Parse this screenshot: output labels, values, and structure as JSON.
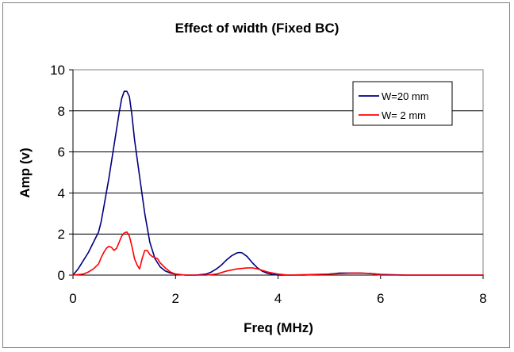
{
  "chart_data": {
    "type": "line",
    "title": "Effect of width (Fixed BC)",
    "xlabel": "Freq (MHz)",
    "ylabel": "Amp (v)",
    "xlim": [
      0,
      8
    ],
    "ylim": [
      0,
      10
    ],
    "x_ticks": [
      "0",
      "2",
      "4",
      "6",
      "8"
    ],
    "y_ticks": [
      "0",
      "2",
      "4",
      "6",
      "8",
      "10"
    ],
    "grid": "horizontal",
    "legend_position": "top-right",
    "colors": {
      "W=20 mm": "#000080",
      "W= 2 mm": "#ff0000",
      "grid": "#000000",
      "plot_border": "#808080"
    },
    "series": [
      {
        "name": "W=20 mm",
        "x": [
          0.0,
          0.1,
          0.2,
          0.3,
          0.4,
          0.5,
          0.55,
          0.6,
          0.7,
          0.8,
          0.9,
          0.95,
          1.0,
          1.05,
          1.1,
          1.15,
          1.2,
          1.3,
          1.4,
          1.5,
          1.6,
          1.7,
          1.8,
          1.9,
          2.0,
          2.1,
          2.2,
          2.4,
          2.6,
          2.7,
          2.8,
          2.9,
          3.0,
          3.1,
          3.2,
          3.25,
          3.3,
          3.4,
          3.5,
          3.6,
          3.7,
          3.8,
          3.9,
          4.0,
          4.2,
          4.5,
          5.0,
          5.2,
          5.4,
          5.6,
          5.8,
          6.0,
          6.5,
          7.0,
          8.0
        ],
        "y": [
          0.0,
          0.3,
          0.7,
          1.1,
          1.6,
          2.1,
          2.6,
          3.3,
          4.7,
          6.3,
          7.9,
          8.6,
          8.95,
          8.95,
          8.7,
          7.8,
          6.6,
          4.8,
          3.0,
          1.6,
          0.8,
          0.4,
          0.2,
          0.1,
          0.05,
          0.02,
          0.0,
          0.0,
          0.05,
          0.15,
          0.3,
          0.5,
          0.75,
          0.95,
          1.08,
          1.1,
          1.08,
          0.9,
          0.6,
          0.35,
          0.18,
          0.08,
          0.03,
          0.0,
          0.0,
          0.0,
          0.05,
          0.1,
          0.1,
          0.1,
          0.08,
          0.03,
          0.0,
          0.0,
          0.0
        ]
      },
      {
        "name": "W= 2 mm",
        "x": [
          0.0,
          0.2,
          0.3,
          0.4,
          0.5,
          0.55,
          0.6,
          0.65,
          0.7,
          0.75,
          0.8,
          0.85,
          0.9,
          0.95,
          1.0,
          1.05,
          1.1,
          1.15,
          1.2,
          1.25,
          1.3,
          1.35,
          1.4,
          1.45,
          1.5,
          1.55,
          1.6,
          1.65,
          1.7,
          1.8,
          1.9,
          2.0,
          2.2,
          2.6,
          2.8,
          3.0,
          3.2,
          3.4,
          3.5,
          3.6,
          3.8,
          4.0,
          4.2,
          5.0,
          5.5,
          5.8,
          6.0,
          8.0
        ],
        "y": [
          0.0,
          0.05,
          0.15,
          0.3,
          0.55,
          0.85,
          1.1,
          1.3,
          1.4,
          1.35,
          1.2,
          1.3,
          1.6,
          1.9,
          2.05,
          2.1,
          1.9,
          1.4,
          0.8,
          0.5,
          0.3,
          0.8,
          1.2,
          1.2,
          1.0,
          0.9,
          0.85,
          0.8,
          0.6,
          0.35,
          0.15,
          0.05,
          0.0,
          0.0,
          0.05,
          0.2,
          0.3,
          0.35,
          0.35,
          0.3,
          0.15,
          0.05,
          0.0,
          0.05,
          0.1,
          0.08,
          0.0,
          0.0
        ]
      }
    ]
  }
}
